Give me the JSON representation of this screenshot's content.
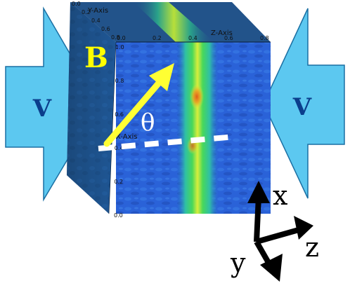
{
  "labels": {
    "field": "B",
    "angle": "θ",
    "velocity_left": "V",
    "velocity_right": "V"
  },
  "triad": {
    "x": "x",
    "y": "y",
    "z": "z"
  },
  "cube_axes": {
    "x_axis_title": "X-Axis",
    "y_axis_title": "Y-Axis",
    "z_axis_title": "Z-Axis",
    "z_ticks": [
      "0.0",
      "0.2",
      "0.4",
      "0.6",
      "0.8"
    ],
    "x_ticks": [
      "1.0",
      "0.8",
      "0.6",
      "0.4",
      "0.2",
      "0.0"
    ],
    "y_ticks": [
      "0.0",
      "0.2",
      "0.4",
      "0.6",
      "0.8"
    ]
  },
  "colors": {
    "arrow_fill": "#5cc8f0",
    "arrow_stroke": "#1a6fa3",
    "velocity_text": "#0b3e8c",
    "field_arrow": "#ffff33",
    "field_text": "#ffff00",
    "angle_text": "#ffffff",
    "dashed_line": "#ffffff",
    "cube_front_base": "#2a62d8",
    "cube_side_base": "#1c4e86",
    "cube_top_base": "#22538a",
    "band_green": "#3fd36a",
    "band_yellow": "#e8ee40",
    "hotspot": "#e05a1a",
    "triad_arrow": "#000000"
  }
}
